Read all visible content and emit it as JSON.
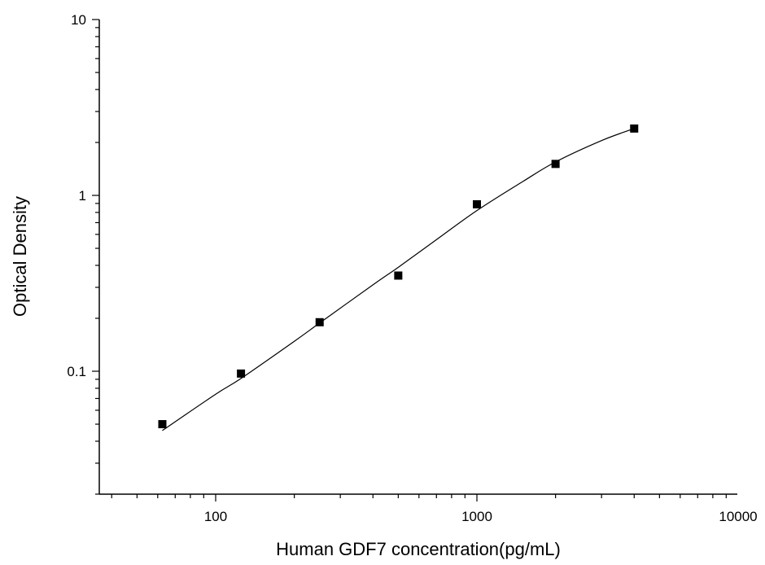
{
  "chart_data": {
    "type": "scatter",
    "xlabel": "Human GDF7 concentration(pg/mL)",
    "ylabel": "Optical Density",
    "x_scale": "log",
    "y_scale": "log",
    "xlim": [
      31,
      10000
    ],
    "ylim": [
      0.02,
      10
    ],
    "x_ticks": [
      100,
      1000,
      10000
    ],
    "x_tick_labels": [
      "100",
      "1000",
      "10000"
    ],
    "y_ticks": [
      0.1,
      1,
      10
    ],
    "y_tick_labels": [
      "0.1",
      "1",
      "10"
    ],
    "grid": false,
    "legend": "none",
    "series": [
      {
        "marker": "square",
        "color": "#000000",
        "x": [
          62.5,
          125,
          250,
          500,
          1000,
          2000,
          4000
        ],
        "y": [
          0.05,
          0.097,
          0.19,
          0.35,
          0.89,
          1.51,
          2.4
        ]
      }
    ],
    "fit_curve": {
      "color": "#000000",
      "x": [
        62.5,
        100,
        125,
        200,
        250,
        400,
        500,
        700,
        1000,
        1500,
        2000,
        3000,
        4000
      ],
      "y": [
        0.046,
        0.074,
        0.091,
        0.148,
        0.188,
        0.31,
        0.39,
        0.56,
        0.82,
        1.2,
        1.55,
        2.05,
        2.4
      ]
    }
  }
}
